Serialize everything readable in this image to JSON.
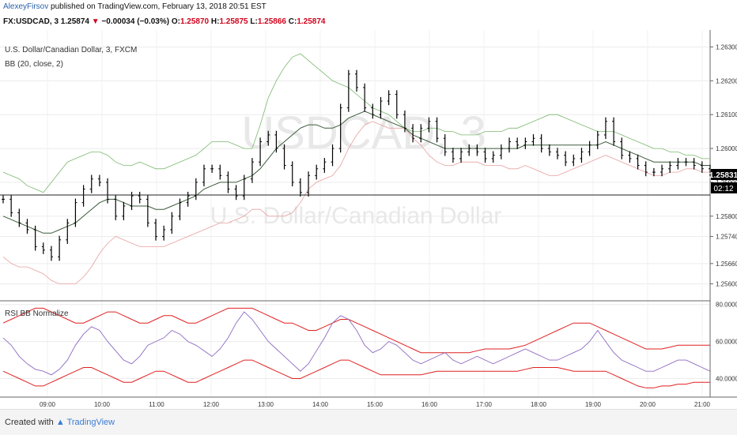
{
  "header": {
    "author": "AlexeyFirsov",
    "published": "published on TradingView.com, February 13, 2018 20:51 EST",
    "symbol": "FX:USDCAD, 3",
    "last": "1.25874",
    "change_arrow": "▼",
    "change": "−0.00034 (−0.03%)",
    "o_label": "O:",
    "o_val": "1.25870",
    "h_label": "H:",
    "h_val": "1.25875",
    "l_label": "L:",
    "l_val": "1.25866",
    "c_label": "C:",
    "c_val": "1.25874"
  },
  "chart_data": {
    "type": "candlestick",
    "title": "U.S. Dollar/Canadian Dollar, 3, FXCM",
    "indicator": "BB (20, close, 2)",
    "watermark_symbol": "USDCAD, 3",
    "watermark_name": "U.S. Dollar/Canadian Dollar",
    "price_axis": {
      "ticks": [
        "1.26300",
        "1.26200",
        "1.26100",
        "1.26000",
        "1.25900",
        "1.25800",
        "1.25740",
        "1.25660",
        "1.25600"
      ],
      "current_price": "1.25831",
      "countdown": "02:12"
    },
    "time_axis": {
      "ticks": [
        "09:00",
        "10:00",
        "11:00",
        "12:00",
        "13:00",
        "14:00",
        "15:00",
        "16:00",
        "17:00",
        "18:00",
        "19:00",
        "20:00",
        "21:00"
      ]
    },
    "price_series": [
      1.2585,
      1.2581,
      1.2578,
      1.2576,
      1.2571,
      1.257,
      1.2568,
      1.2573,
      1.2578,
      1.2584,
      1.2588,
      1.2591,
      1.259,
      1.2585,
      1.258,
      1.2583,
      1.2586,
      1.2585,
      1.2578,
      1.2574,
      1.2576,
      1.258,
      1.2584,
      1.2586,
      1.259,
      1.2594,
      1.2594,
      1.2592,
      1.2588,
      1.2586,
      1.2591,
      1.2596,
      1.2602,
      1.2604,
      1.26,
      1.2595,
      1.259,
      1.2587,
      1.2592,
      1.2594,
      1.2596,
      1.26,
      1.2612,
      1.2622,
      1.2618,
      1.2612,
      1.261,
      1.2614,
      1.2616,
      1.261,
      1.2606,
      1.2603,
      1.2606,
      1.2608,
      1.2603,
      1.2599,
      1.2597,
      1.2599,
      1.26,
      1.2599,
      1.2597,
      1.2598,
      1.26,
      1.2602,
      1.2601,
      1.2602,
      1.2603,
      1.26,
      1.2599,
      1.2598,
      1.2596,
      1.2597,
      1.2599,
      1.2601,
      1.2604,
      1.2608,
      1.2602,
      1.2598,
      1.2597,
      1.2595,
      1.2593,
      1.2593,
      1.2594,
      1.2595,
      1.2596,
      1.2596,
      1.2595,
      1.2594,
      1.2593
    ],
    "bb_upper": [
      1.2593,
      1.2592,
      1.2591,
      1.2589,
      1.2588,
      1.2587,
      1.259,
      1.2593,
      1.2596,
      1.2597,
      1.2598,
      1.2599,
      1.2599,
      1.2598,
      1.2596,
      1.2595,
      1.2595,
      1.2596,
      1.2595,
      1.2594,
      1.2594,
      1.2595,
      1.2596,
      1.2597,
      1.2598,
      1.26,
      1.2602,
      1.2602,
      1.2602,
      1.2601,
      1.26,
      1.26,
      1.2607,
      1.2615,
      1.262,
      1.2624,
      1.2627,
      1.2628,
      1.2626,
      1.2624,
      1.2622,
      1.262,
      1.2619,
      1.2618,
      1.2616,
      1.2614,
      1.2612,
      1.2611,
      1.261,
      1.2608,
      1.2606,
      1.2605,
      1.2605,
      1.2606,
      1.2606,
      1.2605,
      1.2605,
      1.2604,
      1.2604,
      1.2604,
      1.2605,
      1.2605,
      1.2605,
      1.2606,
      1.2606,
      1.2607,
      1.2608,
      1.2609,
      1.261,
      1.261,
      1.2609,
      1.2608,
      1.2607,
      1.2606,
      1.2605,
      1.2605,
      1.2605,
      1.2604,
      1.2603,
      1.2602,
      1.2601,
      1.26,
      1.26,
      1.2599,
      1.2599,
      1.2598,
      1.2598,
      1.2597,
      1.2597
    ],
    "bb_basis": [
      1.258,
      1.2579,
      1.2578,
      1.2577,
      1.2576,
      1.2575,
      1.2575,
      1.2576,
      1.2577,
      1.2578,
      1.258,
      1.2582,
      1.2584,
      1.2585,
      1.2585,
      1.2584,
      1.2583,
      1.2583,
      1.2583,
      1.2582,
      1.2582,
      1.2583,
      1.2584,
      1.2585,
      1.2586,
      1.2588,
      1.2589,
      1.259,
      1.259,
      1.259,
      1.2591,
      1.2592,
      1.2594,
      1.2597,
      1.26,
      1.2602,
      1.2604,
      1.2606,
      1.2607,
      1.2607,
      1.2606,
      1.2606,
      1.2607,
      1.2609,
      1.261,
      1.2611,
      1.261,
      1.2609,
      1.2608,
      1.2607,
      1.2606,
      1.2604,
      1.2603,
      1.2602,
      1.2601,
      1.26,
      1.26,
      1.26,
      1.26,
      1.26,
      1.26,
      1.26,
      1.26,
      1.26,
      1.26,
      1.2601,
      1.2601,
      1.2601,
      1.2601,
      1.2601,
      1.2601,
      1.2601,
      1.2601,
      1.2601,
      1.2601,
      1.2602,
      1.2601,
      1.26,
      1.2599,
      1.2598,
      1.2597,
      1.2596,
      1.2596,
      1.2596,
      1.2596,
      1.2596,
      1.2596,
      1.2595,
      1.2595
    ],
    "bb_lower": [
      1.2568,
      1.2566,
      1.2565,
      1.2565,
      1.2564,
      1.2563,
      1.2561,
      1.256,
      1.256,
      1.256,
      1.2562,
      1.2565,
      1.2569,
      1.2572,
      1.2574,
      1.2573,
      1.2572,
      1.2571,
      1.2571,
      1.2571,
      1.2571,
      1.2572,
      1.2573,
      1.2574,
      1.2575,
      1.2576,
      1.2577,
      1.2578,
      1.2578,
      1.2579,
      1.258,
      1.2582,
      1.2582,
      1.258,
      1.258,
      1.258,
      1.2581,
      1.2584,
      1.2588,
      1.259,
      1.2591,
      1.2592,
      1.2595,
      1.26,
      1.2604,
      1.2607,
      1.2608,
      1.2607,
      1.2606,
      1.2606,
      1.2606,
      1.2603,
      1.2601,
      1.2598,
      1.2596,
      1.2595,
      1.2595,
      1.2596,
      1.2596,
      1.2596,
      1.2595,
      1.2595,
      1.2595,
      1.2594,
      1.2594,
      1.2595,
      1.2594,
      1.2593,
      1.2592,
      1.2592,
      1.2593,
      1.2594,
      1.2595,
      1.2596,
      1.2597,
      1.2598,
      1.2597,
      1.2596,
      1.2595,
      1.2594,
      1.2593,
      1.2592,
      1.2592,
      1.2593,
      1.2593,
      1.2594,
      1.2594,
      1.2593,
      1.2593
    ],
    "lower_panel": {
      "title": "RSI BB Normalize",
      "ticks": [
        "80.0000",
        "60.0000",
        "40.0000"
      ],
      "range": [
        30,
        82
      ],
      "rsi": [
        62,
        58,
        52,
        48,
        45,
        44,
        42,
        45,
        50,
        58,
        64,
        68,
        66,
        60,
        55,
        50,
        48,
        52,
        58,
        60,
        62,
        66,
        64,
        60,
        58,
        55,
        52,
        56,
        62,
        70,
        76,
        72,
        66,
        60,
        56,
        52,
        48,
        44,
        48,
        55,
        62,
        70,
        74,
        72,
        66,
        58,
        54,
        56,
        60,
        58,
        54,
        50,
        48,
        50,
        52,
        54,
        50,
        48,
        50,
        52,
        50,
        48,
        50,
        52,
        54,
        56,
        54,
        52,
        50,
        50,
        52,
        54,
        56,
        60,
        66,
        60,
        54,
        50,
        48,
        46,
        44,
        44,
        46,
        48,
        50,
        50,
        48,
        46,
        44
      ],
      "upper": [
        70,
        72,
        74,
        76,
        78,
        78,
        76,
        74,
        72,
        70,
        70,
        72,
        74,
        76,
        76,
        74,
        72,
        70,
        70,
        72,
        74,
        74,
        72,
        70,
        70,
        72,
        74,
        76,
        78,
        78,
        78,
        78,
        76,
        74,
        72,
        70,
        70,
        68,
        66,
        66,
        68,
        70,
        72,
        72,
        70,
        68,
        66,
        64,
        62,
        60,
        58,
        56,
        54,
        54,
        54,
        54,
        54,
        54,
        54,
        55,
        56,
        56,
        56,
        56,
        57,
        58,
        60,
        62,
        64,
        66,
        68,
        70,
        70,
        70,
        68,
        66,
        64,
        62,
        60,
        58,
        56,
        56,
        56,
        57,
        58,
        58,
        58,
        58,
        58
      ],
      "lower": [
        44,
        42,
        40,
        38,
        36,
        36,
        38,
        40,
        42,
        44,
        46,
        46,
        44,
        42,
        40,
        38,
        38,
        40,
        42,
        44,
        44,
        42,
        40,
        38,
        38,
        40,
        42,
        44,
        46,
        48,
        50,
        50,
        48,
        46,
        44,
        42,
        40,
        40,
        42,
        44,
        46,
        48,
        50,
        50,
        48,
        46,
        44,
        42,
        42,
        42,
        42,
        42,
        42,
        43,
        44,
        44,
        44,
        44,
        44,
        44,
        44,
        44,
        44,
        44,
        44,
        45,
        46,
        46,
        46,
        46,
        45,
        44,
        44,
        44,
        44,
        44,
        42,
        40,
        38,
        36,
        35,
        35,
        36,
        36,
        37,
        37,
        38,
        38,
        38
      ]
    }
  },
  "footer": {
    "created_with": "Created with",
    "brand": "TradingView"
  }
}
